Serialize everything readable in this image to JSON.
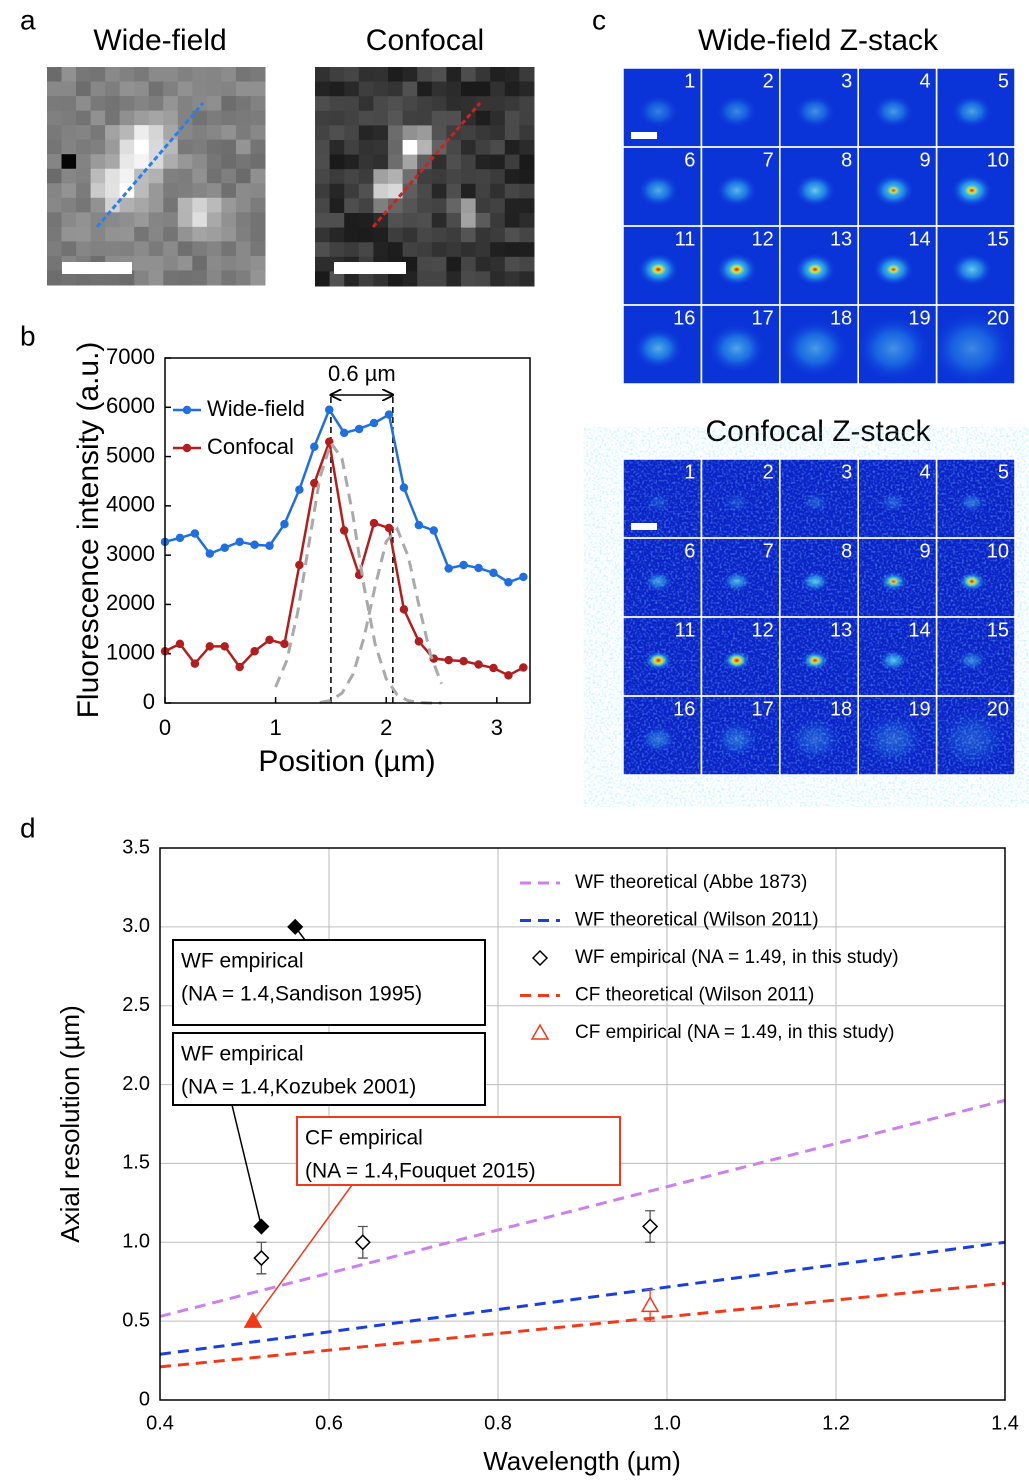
{
  "panel_labels": [
    "a",
    "b",
    "c",
    "d"
  ],
  "panel_a": {
    "titles": [
      "Wide-field",
      "Confocal"
    ]
  },
  "panel_c": {
    "titles": [
      "Wide-field Z-stack",
      "Confocal Z-stack"
    ],
    "tile_numbers": [
      1,
      2,
      3,
      4,
      5,
      6,
      7,
      8,
      9,
      10,
      11,
      12,
      13,
      14,
      15,
      16,
      17,
      18,
      19,
      20
    ]
  },
  "chart_data": [
    {
      "type": "line",
      "x_label": "Position (µm)",
      "y_label": "Fluorescence intensity (a.u.)",
      "xlim": [
        0,
        3.3
      ],
      "xticks": [
        0,
        1,
        2,
        3
      ],
      "ylim": [
        0,
        7000
      ],
      "yticks": [
        0,
        1000,
        2000,
        3000,
        4000,
        5000,
        6000,
        7000
      ],
      "grid": false,
      "legend": "upper left",
      "series": [
        {
          "name": "Wide-field",
          "color": "#1f6fe0",
          "marker": "circle",
          "line": true,
          "x": [
            0,
            0.135,
            0.27,
            0.405,
            0.54,
            0.675,
            0.81,
            0.945,
            1.08,
            1.215,
            1.35,
            1.485,
            1.62,
            1.755,
            1.89,
            2.025,
            2.16,
            2.295,
            2.43,
            2.565,
            2.7,
            2.835,
            2.97,
            3.105,
            3.24
          ],
          "values": [
            3270,
            3350,
            3440,
            3030,
            3150,
            3270,
            3210,
            3190,
            3630,
            4330,
            5200,
            5950,
            5480,
            5560,
            5680,
            5850,
            4370,
            3610,
            3500,
            2730,
            2800,
            2740,
            2640,
            2450,
            2560
          ]
        },
        {
          "name": "Confocal",
          "color": "#b21e1e",
          "marker": "circle",
          "line": true,
          "x": [
            0,
            0.135,
            0.27,
            0.405,
            0.54,
            0.675,
            0.81,
            0.945,
            1.08,
            1.215,
            1.35,
            1.485,
            1.62,
            1.755,
            1.89,
            2.025,
            2.16,
            2.295,
            2.43,
            2.565,
            2.7,
            2.835,
            2.97,
            3.105,
            3.24
          ],
          "values": [
            1050,
            1200,
            800,
            1150,
            1150,
            730,
            1050,
            1280,
            1200,
            2800,
            4460,
            5300,
            3500,
            2600,
            3650,
            3550,
            1900,
            1250,
            900,
            870,
            850,
            780,
            710,
            560,
            720
          ]
        },
        {
          "color": "#aaaaaa",
          "dashed": true,
          "x": [
            1.0,
            1.1,
            1.2,
            1.3,
            1.4,
            1.5,
            1.6,
            1.7,
            1.8,
            1.9,
            2.0,
            2.1,
            2.2,
            2.3,
            2.4,
            2.5
          ],
          "values": [
            325,
            857,
            1840,
            3215,
            4569,
            5278,
            4961,
            3794,
            2358,
            1193,
            491,
            164,
            45,
            10,
            1,
            0
          ]
        },
        {
          "color": "#aaaaaa",
          "dashed": true,
          "x": [
            1.0,
            1.1,
            1.2,
            1.3,
            1.4,
            1.5,
            1.6,
            1.7,
            1.8,
            1.9,
            2.0,
            2.1,
            2.2,
            2.3,
            2.4,
            2.5
          ],
          "values": [
            null,
            null,
            null,
            null,
            11,
            53,
            200,
            584,
            1332,
            2368,
            3277,
            3532,
            2965,
            1939,
            987,
            391
          ]
        }
      ],
      "vlines": [
        1.5,
        2.06
      ],
      "annotation": {
        "text": "0.6 µm",
        "y": 6250
      }
    },
    {
      "type": "line",
      "x_label": "Wavelength (µm)",
      "y_label": "Axial resolution (µm)",
      "xlim": [
        0.4,
        1.4
      ],
      "xticks": [
        0.4,
        0.6,
        0.8,
        {
          "value": 1,
          "label": "1.0"
        },
        1.2,
        1.4
      ],
      "ylim": [
        0,
        3.5
      ],
      "yticks": [
        0,
        0.5,
        {
          "value": 1,
          "label": "1.0"
        },
        1.5,
        {
          "value": 2,
          "label": "2.0"
        },
        2.5,
        {
          "value": 3,
          "label": "3.0"
        },
        3.5
      ],
      "grid": true,
      "legend": "upper right",
      "series": [
        {
          "name": "WF theoretical (Abbe 1873)",
          "color": "#cc80f0",
          "dashed": true,
          "x": [
            0.4,
            1.4
          ],
          "values": [
            0.53,
            1.9
          ]
        },
        {
          "name": "WF theoretical (Wilson 2011)",
          "color": "#1a3fe0",
          "dashed": true,
          "x": [
            0.4,
            1.4
          ],
          "values": [
            0.29,
            1.0
          ]
        },
        {
          "name": "WF empirical (NA = 1.49, in this study)",
          "color": "#000000",
          "marker": "diamond",
          "filled": false,
          "x": [
            0.52,
            0.64,
            0.98
          ],
          "values": [
            0.9,
            1.0,
            1.1
          ],
          "errors": [
            0.1,
            0.1,
            0.1
          ]
        },
        {
          "name": "CF theoretical (Wilson 2011)",
          "color": "#f03a1a",
          "dashed": true,
          "x": [
            0.4,
            1.4
          ],
          "values": [
            0.21,
            0.74
          ]
        },
        {
          "name": "CF empirical (NA = 1.49, in this study)",
          "color": "#f03a1a",
          "marker": "triangle",
          "filled": false,
          "x": [
            0.98
          ],
          "values": [
            0.6
          ],
          "errors": [
            0.1
          ]
        },
        {
          "color": "#000000",
          "marker": "diamond",
          "filled": true,
          "x": [
            0.56
          ],
          "values": [
            3.0
          ],
          "callout": [
            "WF empirical",
            "(NA = 1.4,Sandison 1995)"
          ]
        },
        {
          "color": "#000000",
          "marker": "diamond",
          "filled": true,
          "x": [
            0.52
          ],
          "values": [
            1.1
          ],
          "callout": [
            "WF empirical",
            "(NA = 1.4,Kozubek 2001)"
          ]
        },
        {
          "color": "#f03a1a",
          "marker": "triangle",
          "filled": true,
          "x": [
            0.51
          ],
          "values": [
            0.5
          ],
          "callout": [
            "CF empirical",
            "(NA = 1.4,Fouquet 2015)"
          ]
        }
      ]
    }
  ]
}
